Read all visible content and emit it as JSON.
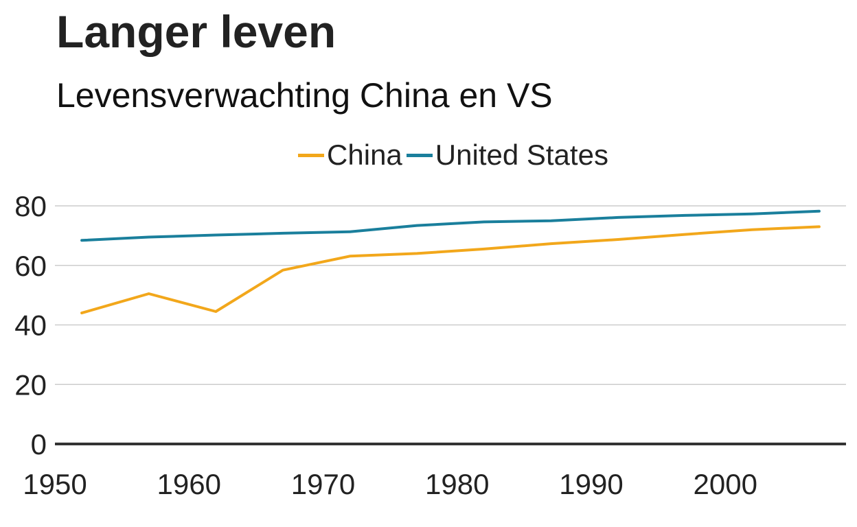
{
  "chart_data": {
    "type": "line",
    "title": "Langer leven",
    "subtitle": "Levensverwachting China en VS",
    "xlabel": "",
    "ylabel": "",
    "x": [
      1952,
      1957,
      1962,
      1967,
      1972,
      1977,
      1982,
      1987,
      1992,
      1997,
      2002,
      2007
    ],
    "series": [
      {
        "name": "China",
        "color": "#f2a71b",
        "values": [
          44.0,
          50.5,
          44.5,
          58.4,
          63.1,
          64.0,
          65.5,
          67.3,
          68.7,
          70.4,
          72.0,
          73.0
        ]
      },
      {
        "name": "United States",
        "color": "#1a7f9c",
        "values": [
          68.4,
          69.5,
          70.2,
          70.8,
          71.3,
          73.4,
          74.6,
          75.0,
          76.1,
          76.8,
          77.3,
          78.2
        ]
      }
    ],
    "xlim": [
      1950,
      2009
    ],
    "ylim": [
      0,
      80
    ],
    "x_ticks": [
      "1950",
      "1960",
      "1970",
      "1980",
      "1990",
      "2000"
    ],
    "y_ticks": [
      "0",
      "20",
      "40",
      "60",
      "80"
    ],
    "grid": true,
    "legend_position": "top-center",
    "gridline_color": "#cccccc",
    "baseline_color": "#333333"
  }
}
